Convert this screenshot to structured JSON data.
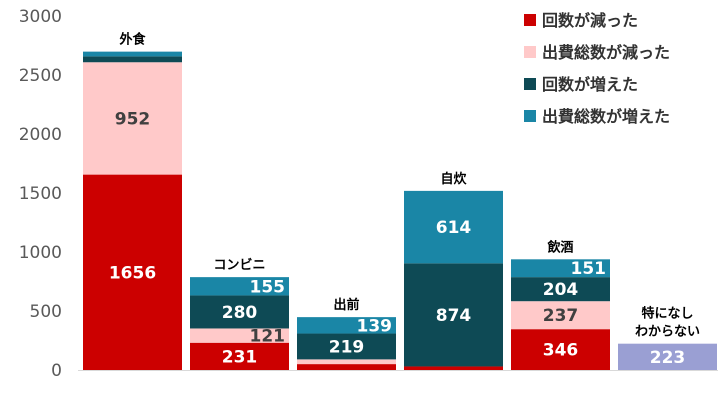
{
  "chart_data": {
    "type": "bar",
    "stacked": true,
    "categories": [
      "外食",
      "コンビニ",
      "出前",
      "自炊",
      "飲酒",
      "特になし\nわからない"
    ],
    "series": [
      {
        "name": "回数が減った",
        "color": "#cc0000",
        "values": [
          1656,
          231,
          50,
          30,
          346,
          0
        ]
      },
      {
        "name": "出費総数が減った",
        "color": "#ffc9c9",
        "values": [
          952,
          121,
          40,
          0,
          237,
          0
        ]
      },
      {
        "name": "回数が増えた",
        "color": "#0e4a55",
        "values": [
          50,
          280,
          219,
          874,
          204,
          0
        ]
      },
      {
        "name": "出費総数が増えた",
        "color": "#1a86a6",
        "values": [
          40,
          155,
          139,
          614,
          151,
          0
        ]
      }
    ],
    "other": {
      "category": "特になし\nわからない",
      "value": 223,
      "color": "#9a9fd3"
    },
    "data_labels": [
      {
        "category": 0,
        "series": 0,
        "text": "1656",
        "color": "#ffffff"
      },
      {
        "category": 0,
        "series": 1,
        "text": "952",
        "color": "#404040"
      },
      {
        "category": 1,
        "series": 0,
        "text": "231",
        "color": "#ffffff"
      },
      {
        "category": 1,
        "series": 1,
        "text": "121",
        "color": "#404040"
      },
      {
        "category": 1,
        "series": 2,
        "text": "280",
        "color": "#ffffff"
      },
      {
        "category": 1,
        "series": 3,
        "text": "155",
        "color": "#ffffff"
      },
      {
        "category": 2,
        "series": 2,
        "text": "219",
        "color": "#ffffff"
      },
      {
        "category": 2,
        "series": 3,
        "text": "139",
        "color": "#ffffff"
      },
      {
        "category": 3,
        "series": 2,
        "text": "874",
        "color": "#ffffff"
      },
      {
        "category": 3,
        "series": 3,
        "text": "614",
        "color": "#ffffff"
      },
      {
        "category": 4,
        "series": 0,
        "text": "346",
        "color": "#ffffff"
      },
      {
        "category": 4,
        "series": 1,
        "text": "237",
        "color": "#404040"
      },
      {
        "category": 4,
        "series": 2,
        "text": "204",
        "color": "#ffffff"
      },
      {
        "category": 4,
        "series": 3,
        "text": "151",
        "color": "#ffffff"
      },
      {
        "category": 5,
        "series": -1,
        "text": "223",
        "color": "#ffffff"
      }
    ],
    "ylim": [
      0,
      3000
    ],
    "yticks": [
      0,
      500,
      1000,
      1500,
      2000,
      2500,
      3000
    ],
    "grid": false,
    "legend_position": "top-right",
    "title": "",
    "xlabel": "",
    "ylabel": ""
  }
}
